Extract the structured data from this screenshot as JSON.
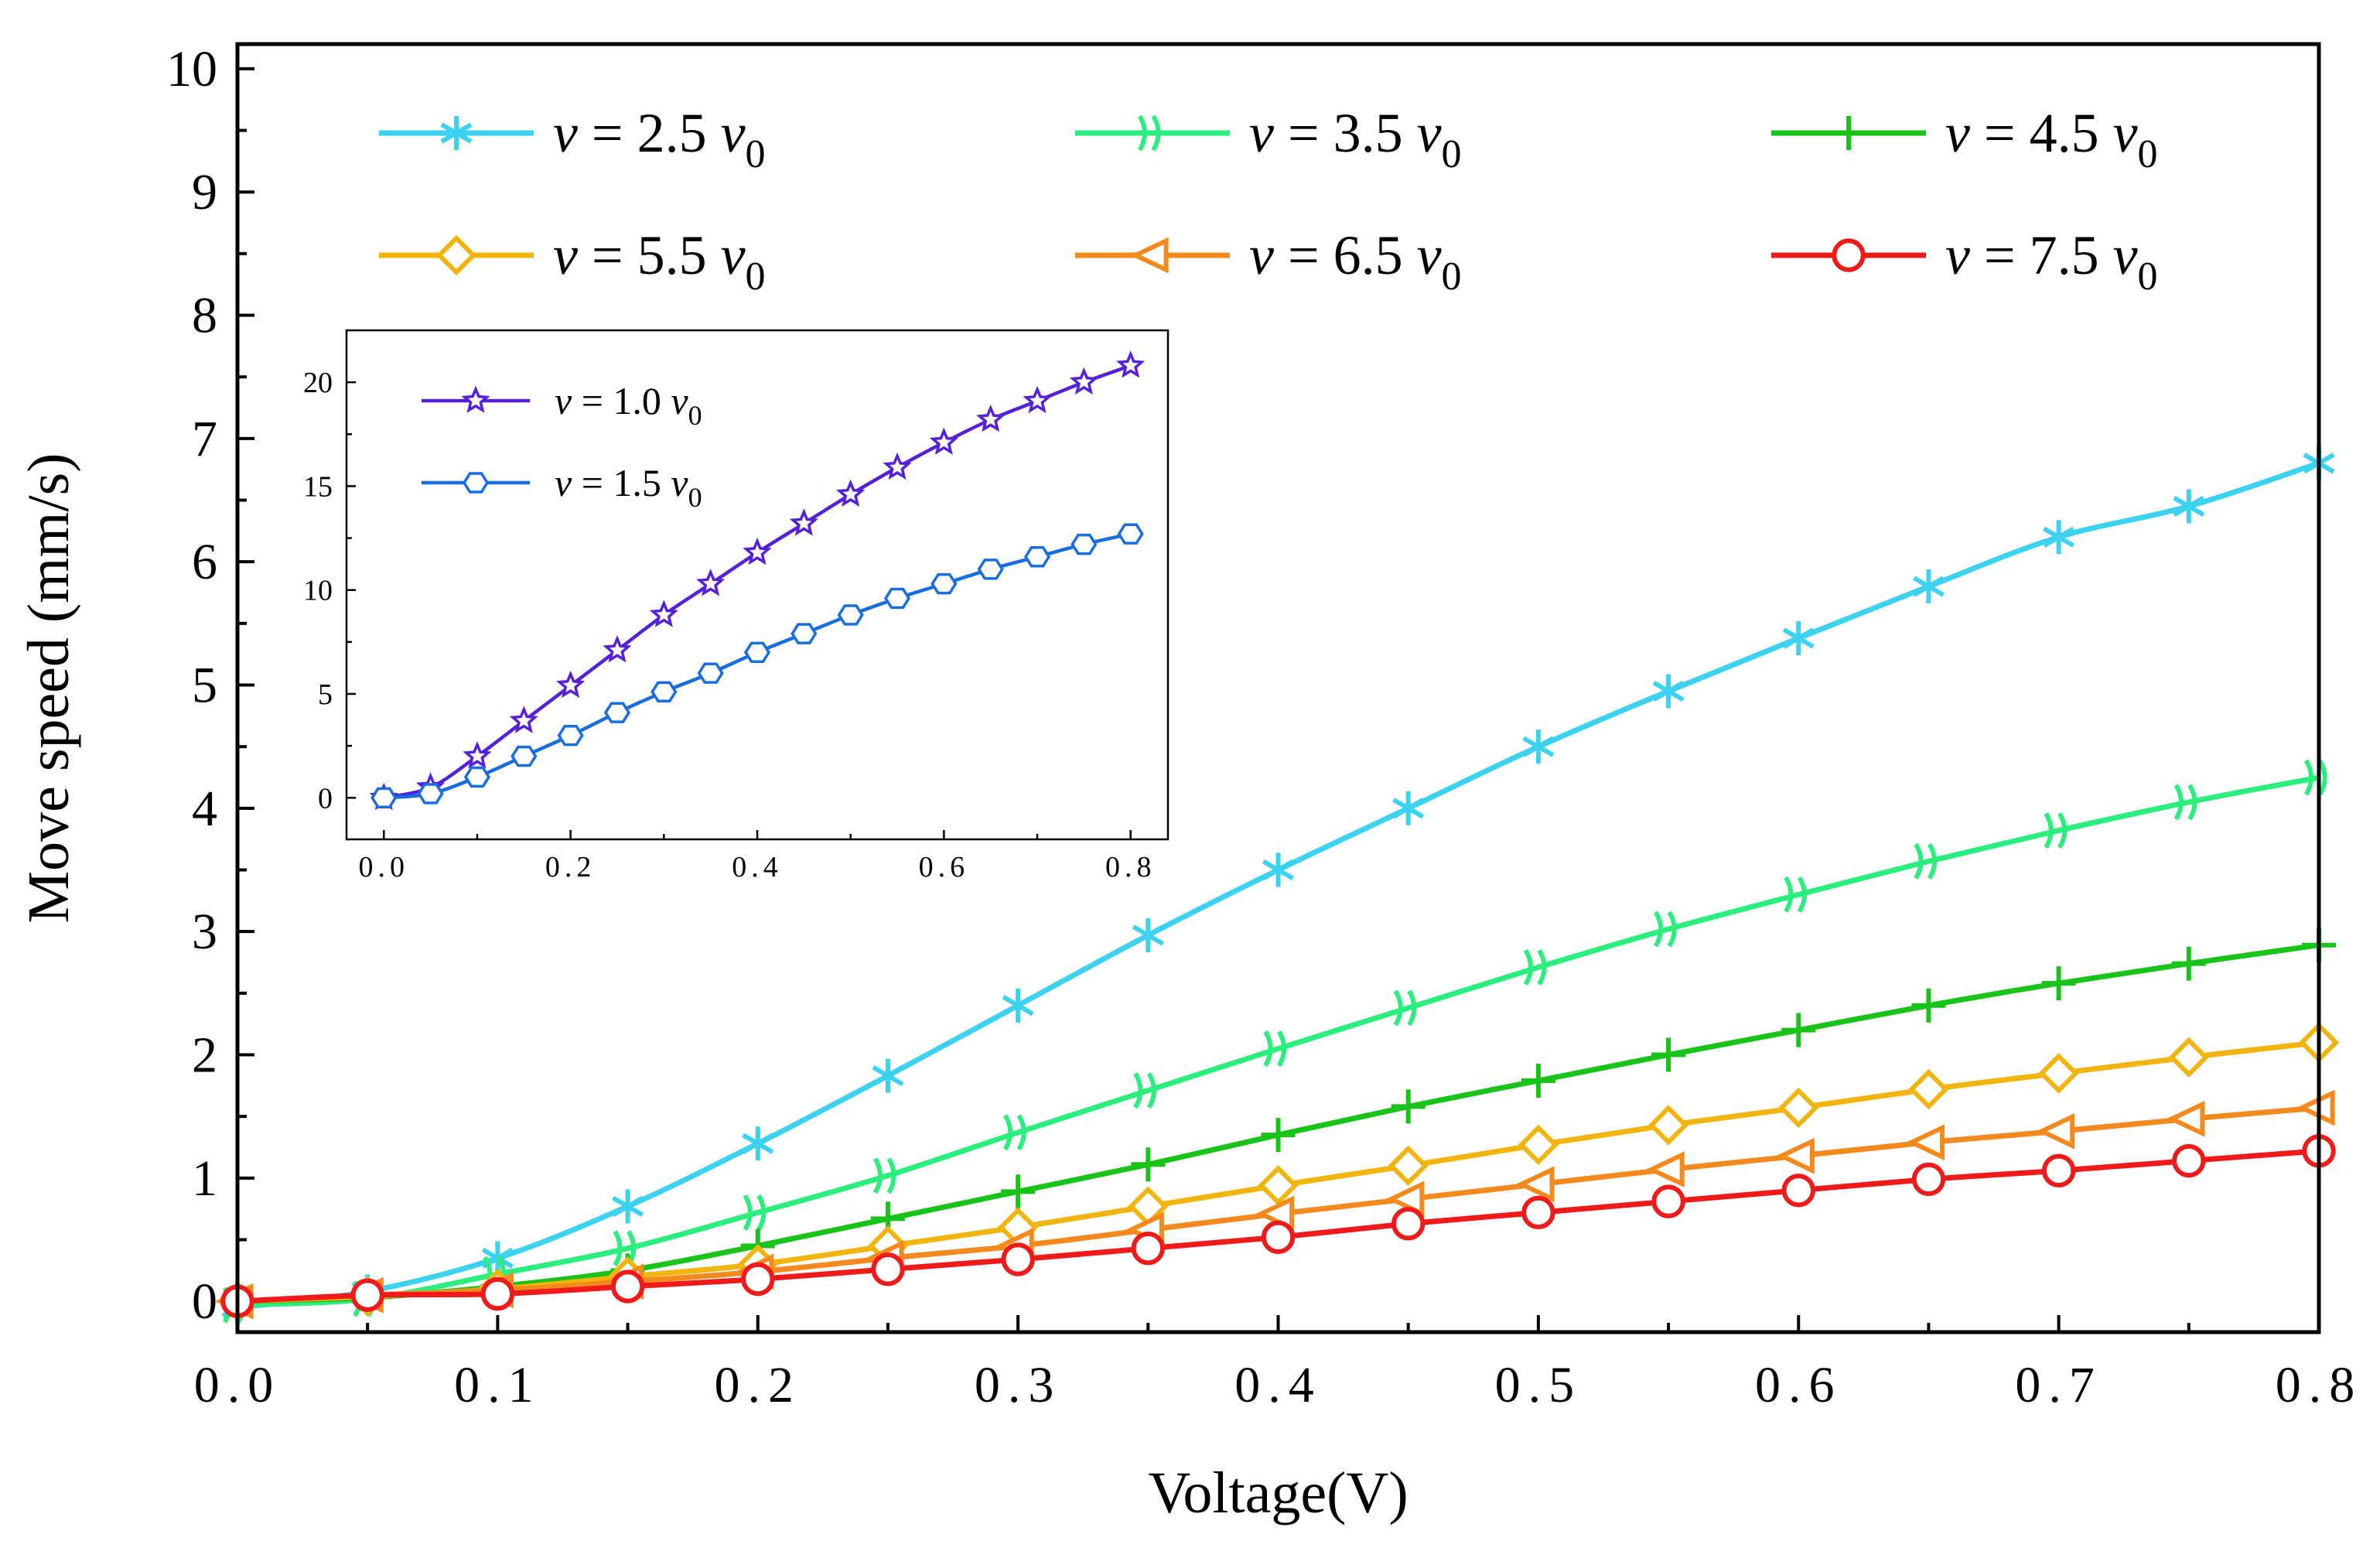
{
  "chart_data": [
    {
      "type": "line",
      "title": "",
      "xlabel": "Voltage(V)",
      "ylabel": "Move speed (mm/s)",
      "xlim": [
        0,
        0.8
      ],
      "ylim": [
        -0.25,
        10.2
      ],
      "xticks": [
        "0.0",
        "0.1",
        "0.2",
        "0.3",
        "0.4",
        "0.5",
        "0.6",
        "0.7",
        "0.8"
      ],
      "yticks": [
        "0",
        "1",
        "2",
        "3",
        "4",
        "5",
        "6",
        "7",
        "8",
        "9",
        "10"
      ],
      "grid": false,
      "legend_position": "top",
      "x": [
        0,
        0.05,
        0.1,
        0.15,
        0.2,
        0.25,
        0.3,
        0.35,
        0.4,
        0.45,
        0.5,
        0.55,
        0.6,
        0.65,
        0.7,
        0.75,
        0.8
      ],
      "series": [
        {
          "name": "v = 2.5 v0",
          "label_v": "v",
          "label_eq": " = 2.5 ",
          "label_v0": "v",
          "label_sub": "0",
          "color": "#3dd2ef",
          "marker": "asterisk",
          "values": [
            -0.05,
            0.08,
            0.35,
            0.77,
            1.28,
            1.83,
            2.4,
            2.97,
            3.5,
            4.0,
            4.5,
            4.95,
            5.38,
            5.8,
            6.2,
            6.45,
            6.8
          ]
        },
        {
          "name": "v = 3.5 v0",
          "label_v": "v",
          "label_eq": " = 3.5 ",
          "label_v0": "v",
          "label_sub": "0",
          "color": "#2cee7e",
          "marker": "double-slash",
          "values": [
            -0.03,
            0.02,
            0.22,
            0.43,
            0.72,
            1.02,
            1.37,
            1.71,
            2.05,
            2.38,
            2.71,
            3.02,
            3.3,
            3.57,
            3.82,
            4.05,
            4.25
          ]
        },
        {
          "name": "v = 4.5 v0",
          "label_v": "v",
          "label_eq": " = 4.5 ",
          "label_v0": "v",
          "label_sub": "0",
          "color": "#1ac31a",
          "marker": "plus",
          "values": [
            0.0,
            0.03,
            0.12,
            0.25,
            0.45,
            0.67,
            0.89,
            1.11,
            1.35,
            1.58,
            1.79,
            2.0,
            2.2,
            2.4,
            2.58,
            2.74,
            2.89
          ]
        },
        {
          "name": "v = 5.5 v0",
          "label_v": "v",
          "label_eq": " = 5.5 ",
          "label_v0": "v",
          "label_sub": "0",
          "color": "#f2b510",
          "marker": "diamond",
          "values": [
            0.0,
            0.04,
            0.1,
            0.2,
            0.3,
            0.45,
            0.6,
            0.77,
            0.94,
            1.1,
            1.27,
            1.43,
            1.57,
            1.72,
            1.85,
            1.98,
            2.1
          ]
        },
        {
          "name": "v = 6.5 v0",
          "label_v": "v",
          "label_eq": " = 6.5 ",
          "label_v0": "v",
          "label_sub": "0",
          "color": "#f48a1e",
          "marker": "triangle-left",
          "values": [
            0.0,
            0.05,
            0.09,
            0.16,
            0.24,
            0.35,
            0.45,
            0.58,
            0.71,
            0.83,
            0.95,
            1.07,
            1.18,
            1.29,
            1.38,
            1.48,
            1.57
          ]
        },
        {
          "name": "v = 7.5 v0",
          "label_v": "v",
          "label_eq": " = 7.5 ",
          "label_v0": "v",
          "label_sub": "0",
          "color": "#ef1a1a",
          "marker": "circle",
          "values": [
            0.0,
            0.05,
            0.06,
            0.12,
            0.18,
            0.26,
            0.34,
            0.43,
            0.52,
            0.63,
            0.72,
            0.81,
            0.9,
            0.99,
            1.06,
            1.14,
            1.22
          ]
        }
      ]
    },
    {
      "type": "line",
      "title": "",
      "xlabel": "",
      "ylabel": "",
      "xlim": [
        -0.04,
        0.84
      ],
      "ylim": [
        -2,
        22.5
      ],
      "xticks": [
        "0.0",
        "0.2",
        "0.4",
        "0.6",
        "0.8"
      ],
      "yticks": [
        "0",
        "5",
        "10",
        "15",
        "20"
      ],
      "grid": false,
      "legend_position": "top-left",
      "x": [
        0,
        0.05,
        0.1,
        0.15,
        0.2,
        0.25,
        0.3,
        0.35,
        0.4,
        0.45,
        0.5,
        0.55,
        0.6,
        0.65,
        0.7,
        0.75,
        0.8
      ],
      "series": [
        {
          "name": "v = 1.0 v0",
          "label_v": "v",
          "label_eq": " = 1.0 ",
          "label_v0": "v",
          "label_sub": "0",
          "color": "#5520d8",
          "marker": "star",
          "values": [
            0.0,
            0.5,
            2.0,
            3.7,
            5.4,
            7.1,
            8.8,
            10.3,
            11.8,
            13.2,
            14.6,
            15.9,
            17.1,
            18.2,
            19.1,
            20.0,
            20.8
          ]
        },
        {
          "name": "v = 1.5 v0",
          "label_v": "v",
          "label_eq": " = 1.5 ",
          "label_v0": "v",
          "label_sub": "0",
          "color": "#1a6ddf",
          "marker": "hexagon",
          "values": [
            0.0,
            0.2,
            1.0,
            2.0,
            3.0,
            4.1,
            5.1,
            6.0,
            7.0,
            7.9,
            8.8,
            9.6,
            10.3,
            11.0,
            11.6,
            12.2,
            12.7
          ]
        }
      ]
    }
  ]
}
